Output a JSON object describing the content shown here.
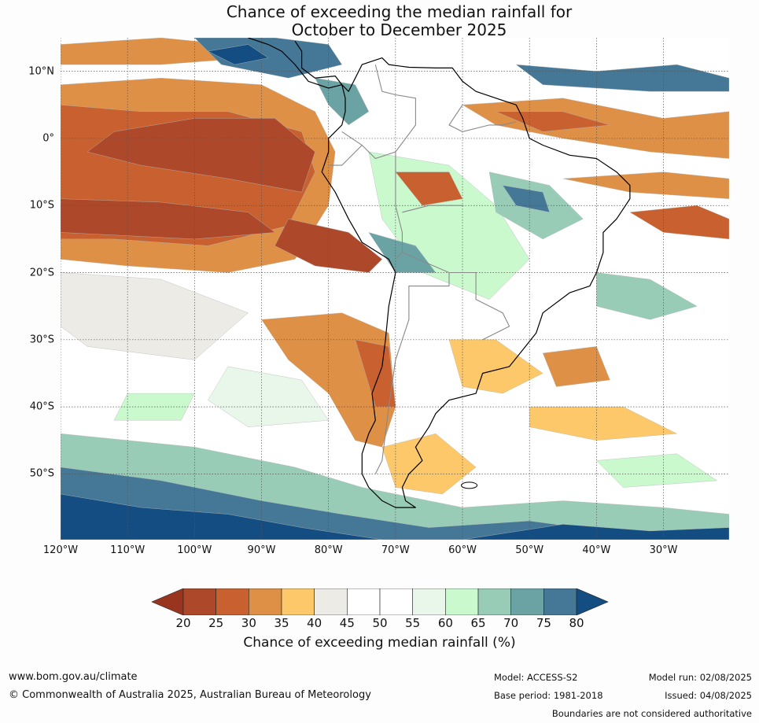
{
  "title": {
    "line1": "Chance of exceeding the median rainfall for",
    "line2": "October to December 2025"
  },
  "map": {
    "lat_labels": [
      "10°N",
      "0°",
      "10°S",
      "20°S",
      "30°S",
      "40°S",
      "50°S"
    ],
    "lon_labels": [
      "120°W",
      "110°W",
      "100°W",
      "90°W",
      "80°W",
      "70°W",
      "60°W",
      "50°W",
      "40°W",
      "30°W"
    ],
    "colors": {
      "p15": "#99351f",
      "p20": "#ae482a",
      "p25": "#c8612f",
      "p30": "#de9046",
      "p35": "#fcc86a",
      "p40": "#ecebe6",
      "p45": "#ffffff",
      "p50": "#ffffff",
      "p55": "#e9f7eb",
      "p60": "#c9f9cd",
      "p65": "#99ccb7",
      "p70": "#6ba3a5",
      "p75": "#457896",
      "p80": "#134d82"
    }
  },
  "colorbar": {
    "ticks": [
      "20",
      "25",
      "30",
      "35",
      "40",
      "45",
      "50",
      "55",
      "60",
      "65",
      "70",
      "75",
      "80"
    ],
    "label": "Chance of exceeding median rainfall (%)"
  },
  "footer": {
    "website": "www.bom.gov.au/climate",
    "copyright": "© Commonwealth of Australia 2025, Australian Bureau of Meteorology",
    "model": "Model: ACCESS-S2",
    "base_period": "Base period: 1981-2018",
    "model_run": "Model run: 02/08/2025",
    "issued": "Issued: 04/08/2025",
    "disclaimer": "Boundaries are not considered authoritative"
  }
}
